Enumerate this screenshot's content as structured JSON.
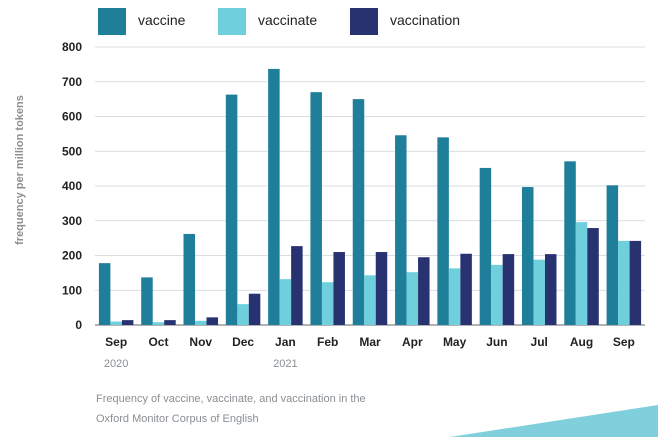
{
  "chart_data": {
    "type": "bar",
    "categories": [
      "Sep",
      "Oct",
      "Nov",
      "Dec",
      "Jan",
      "Feb",
      "Mar",
      "Apr",
      "May",
      "Jun",
      "Jul",
      "Aug",
      "Sep"
    ],
    "year_labels": [
      {
        "category_index": 0,
        "label": "2020"
      },
      {
        "category_index": 4,
        "label": "2021"
      }
    ],
    "series": [
      {
        "name": "vaccine",
        "color": "#1f7e99",
        "values": [
          178,
          137,
          262,
          663,
          737,
          670,
          650,
          546,
          540,
          452,
          397,
          471,
          402
        ]
      },
      {
        "name": "vaccinate",
        "color": "#6fcfdd",
        "values": [
          10,
          8,
          12,
          60,
          132,
          123,
          143,
          152,
          163,
          173,
          188,
          296,
          242
        ]
      },
      {
        "name": "vaccination",
        "color": "#283270",
        "values": [
          14,
          14,
          22,
          90,
          227,
          210,
          210,
          195,
          205,
          204,
          204,
          279,
          242
        ]
      }
    ],
    "ylabel": "frequency per million tokens",
    "xlabel": "",
    "yticks": [
      0,
      100,
      200,
      300,
      400,
      500,
      600,
      700,
      800
    ],
    "ylim": [
      0,
      800
    ],
    "grid": true,
    "legend_position": "top-left"
  },
  "caption": {
    "line1": "Frequency of vaccine, vaccinate, and vaccination in the",
    "line2": "Oxford Monitor Corpus of English"
  },
  "decoration": {
    "corner_color": "#7fd0dc"
  }
}
